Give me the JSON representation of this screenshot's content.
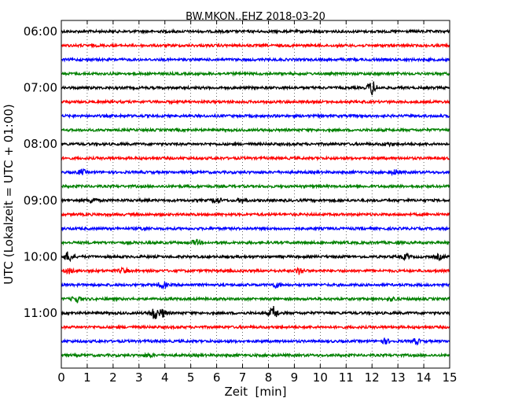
{
  "chart_data": {
    "type": "line",
    "title": "BW.MKON..EHZ 2018-03-20",
    "xlabel": "Zeit  [min]",
    "ylabel": "UTC (Lokalzeit = UTC + 01:00)",
    "xlim": [
      0,
      15
    ],
    "x_ticks": [
      0,
      1,
      2,
      3,
      4,
      5,
      6,
      7,
      8,
      9,
      10,
      11,
      12,
      13,
      14,
      15
    ],
    "y_tick_labels": [
      "06:00",
      "07:00",
      "08:00",
      "09:00",
      "10:00",
      "11:00"
    ],
    "grid": "vertical dotted",
    "trace_interval_min": 15,
    "trace_colors": [
      "#000000",
      "#ff0000",
      "#0000ff",
      "#008000"
    ],
    "series": [
      {
        "start": "06:00",
        "color": "#000000",
        "events": []
      },
      {
        "start": "06:15",
        "color": "#ff0000",
        "events": []
      },
      {
        "start": "06:30",
        "color": "#0000ff",
        "events": []
      },
      {
        "start": "06:45",
        "color": "#008000",
        "events": []
      },
      {
        "start": "07:00",
        "color": "#000000",
        "events": [
          {
            "t": 12.0,
            "amp": 9
          }
        ]
      },
      {
        "start": "07:15",
        "color": "#ff0000",
        "events": []
      },
      {
        "start": "07:30",
        "color": "#0000ff",
        "events": []
      },
      {
        "start": "07:45",
        "color": "#008000",
        "events": []
      },
      {
        "start": "08:00",
        "color": "#000000",
        "events": [
          {
            "t": 12.6,
            "amp": 2
          }
        ]
      },
      {
        "start": "08:15",
        "color": "#ff0000",
        "events": []
      },
      {
        "start": "08:30",
        "color": "#0000ff",
        "events": [
          {
            "t": 0.8,
            "amp": 3
          },
          {
            "t": 12.9,
            "amp": 3
          }
        ]
      },
      {
        "start": "08:45",
        "color": "#008000",
        "events": []
      },
      {
        "start": "09:00",
        "color": "#000000",
        "events": [
          {
            "t": 1.2,
            "amp": 3
          },
          {
            "t": 6.0,
            "amp": 4
          },
          {
            "t": 7.0,
            "amp": 3
          }
        ]
      },
      {
        "start": "09:15",
        "color": "#ff0000",
        "events": []
      },
      {
        "start": "09:30",
        "color": "#0000ff",
        "events": [
          {
            "t": 3.2,
            "amp": 2
          }
        ]
      },
      {
        "start": "09:45",
        "color": "#008000",
        "events": [
          {
            "t": 5.2,
            "amp": 3
          }
        ]
      },
      {
        "start": "10:00",
        "color": "#000000",
        "events": [
          {
            "t": 0.3,
            "amp": 7
          },
          {
            "t": 13.3,
            "amp": 3
          },
          {
            "t": 14.6,
            "amp": 3
          }
        ]
      },
      {
        "start": "10:15",
        "color": "#ff0000",
        "events": [
          {
            "t": 0.3,
            "amp": 3
          },
          {
            "t": 2.4,
            "amp": 3
          },
          {
            "t": 9.2,
            "amp": 4
          }
        ]
      },
      {
        "start": "10:30",
        "color": "#0000ff",
        "events": [
          {
            "t": 3.9,
            "amp": 4
          },
          {
            "t": 8.3,
            "amp": 3
          }
        ]
      },
      {
        "start": "10:45",
        "color": "#008000",
        "events": [
          {
            "t": 0.6,
            "amp": 4
          },
          {
            "t": 12.8,
            "amp": 2
          }
        ]
      },
      {
        "start": "11:00",
        "color": "#000000",
        "events": [
          {
            "t": 3.6,
            "amp": 8
          },
          {
            "t": 3.9,
            "amp": 5
          },
          {
            "t": 8.2,
            "amp": 8
          }
        ]
      },
      {
        "start": "11:15",
        "color": "#ff0000",
        "events": []
      },
      {
        "start": "11:30",
        "color": "#0000ff",
        "events": [
          {
            "t": 12.5,
            "amp": 3
          },
          {
            "t": 13.7,
            "amp": 3
          }
        ]
      },
      {
        "start": "11:45",
        "color": "#008000",
        "events": [
          {
            "t": 3.4,
            "amp": 2
          }
        ]
      }
    ]
  }
}
